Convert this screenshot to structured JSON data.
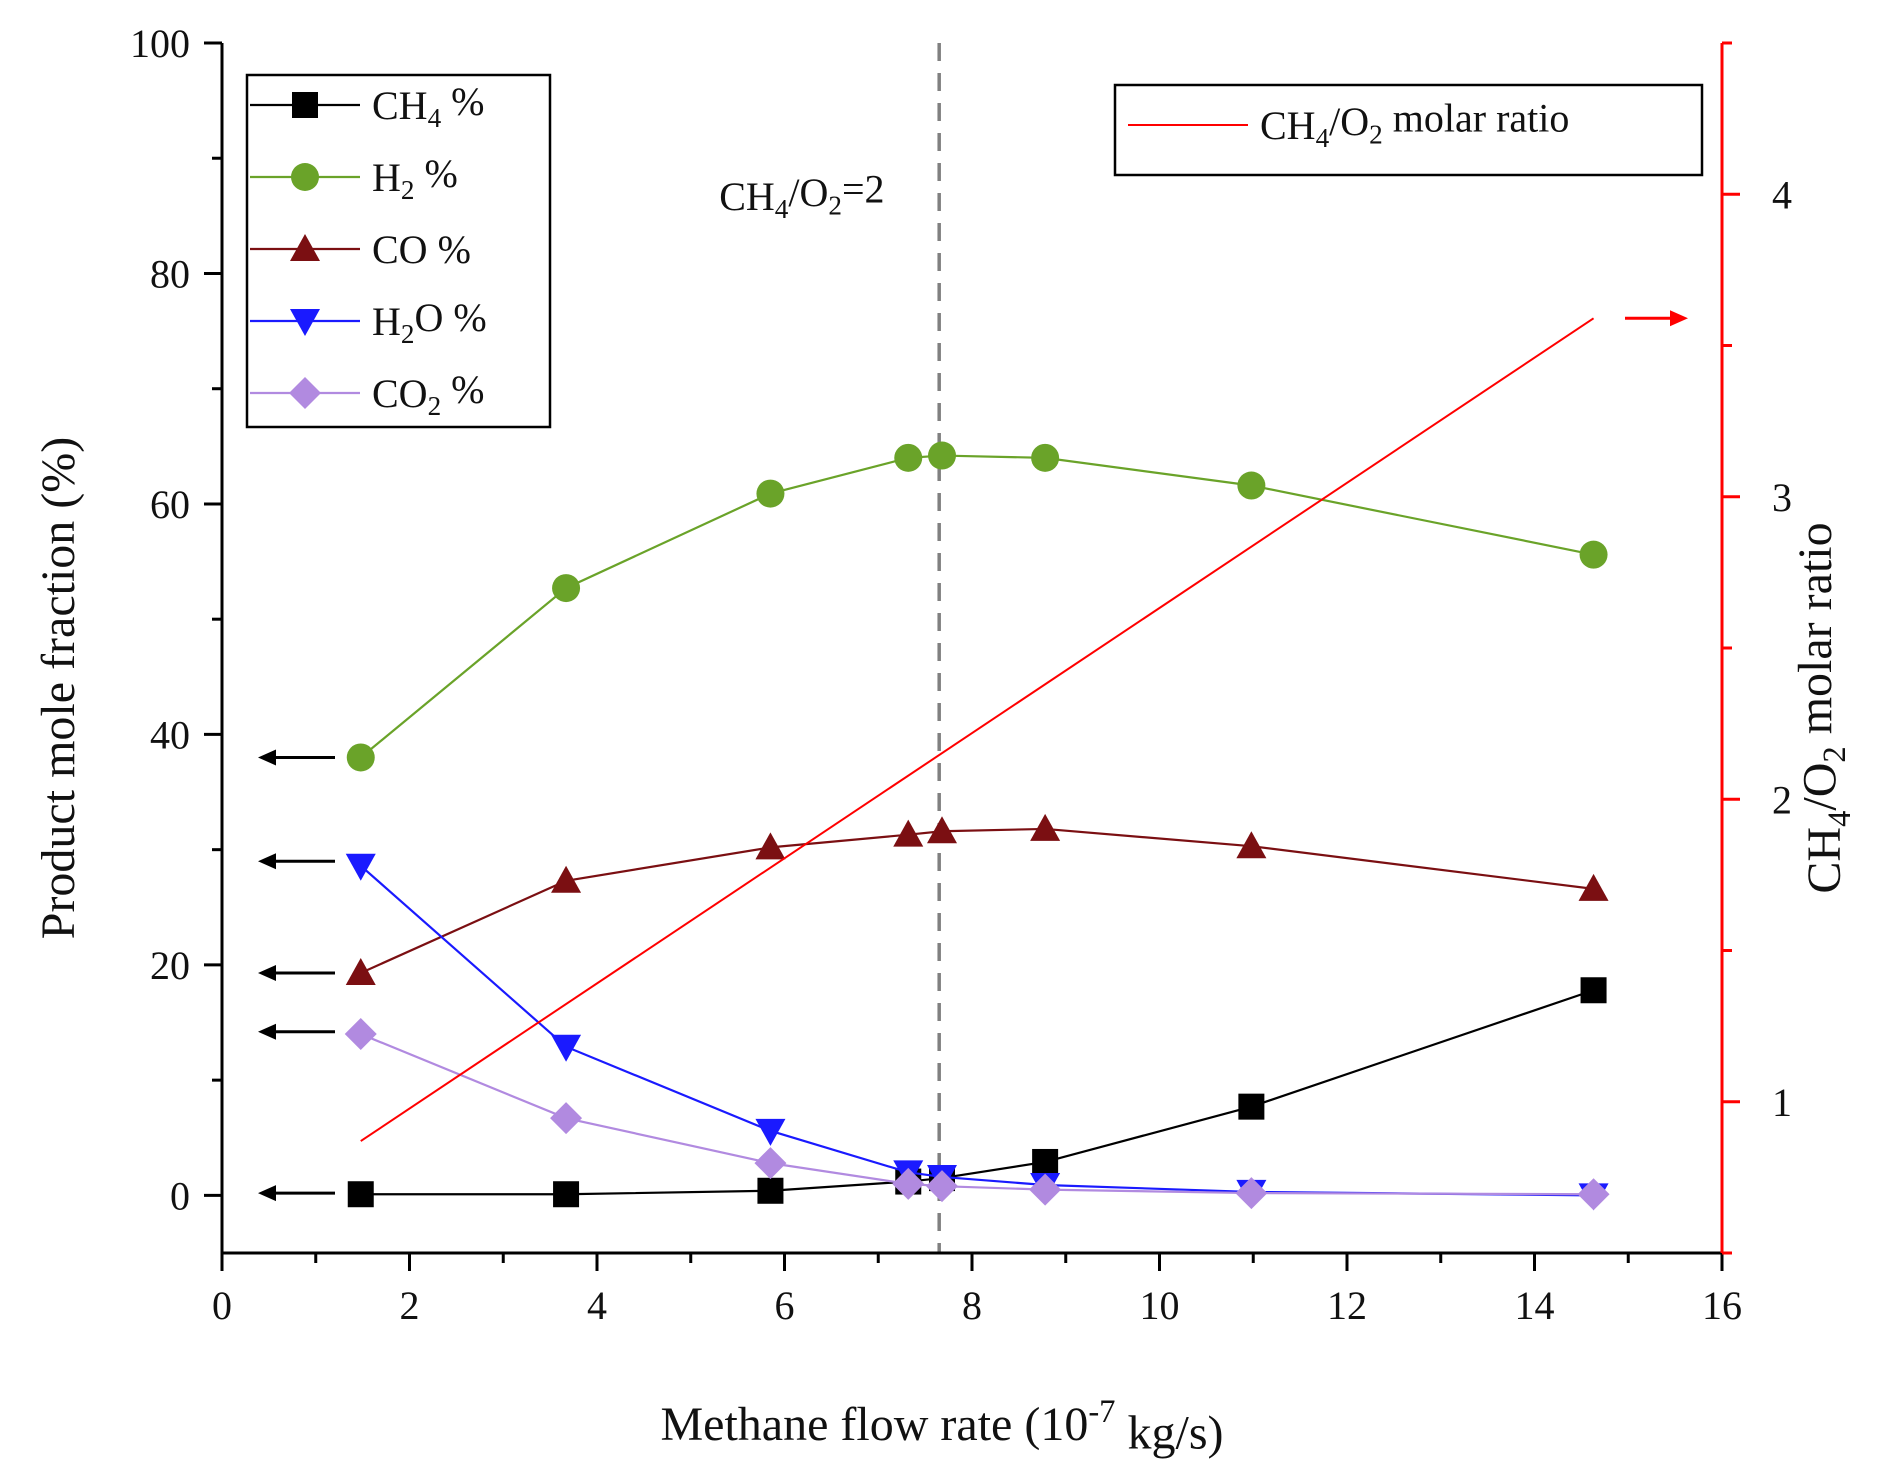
{
  "chart_data": {
    "type": "line",
    "title": "",
    "xlabel": "Methane flow rate (10^-7 kg/s)",
    "xlabel_parts": {
      "base": "Methane flow rate (10",
      "exp": "-7",
      "rest": " kg/s)"
    },
    "ylabel": "Product mole fraction (%)",
    "y2label": "CH4/O2 molar ratio",
    "y2label_parts": {
      "a": "CH",
      "a_sub": "4",
      "b": "/O",
      "b_sub": "2",
      "c": " molar ratio"
    },
    "xlim": [
      0,
      16
    ],
    "ylim": [
      -5,
      100
    ],
    "y2lim": [
      0.5,
      4.5
    ],
    "x_ticks": [
      "0",
      "2",
      "4",
      "6",
      "8",
      "10",
      "12",
      "14",
      "16"
    ],
    "y_ticks": [
      "0",
      "20",
      "40",
      "60",
      "80",
      "100"
    ],
    "y2_ticks": [
      "1",
      "2",
      "3",
      "4"
    ],
    "series": [
      {
        "name": "CH4 %",
        "label_base": "CH",
        "label_sub": "4",
        "label_rest": " %",
        "axis": "left",
        "color": "#000000",
        "marker": "square",
        "x": [
          1.48,
          3.67,
          5.85,
          7.32,
          7.68,
          8.78,
          10.98,
          14.63
        ],
        "values": [
          0.1,
          0.1,
          0.4,
          1.2,
          1.5,
          2.9,
          7.7,
          17.8
        ]
      },
      {
        "name": "H2 %",
        "label_base": "H",
        "label_sub": "2",
        "label_rest": " %",
        "axis": "left",
        "color": "#6aa329",
        "marker": "circle",
        "x": [
          1.48,
          3.67,
          5.85,
          7.32,
          7.68,
          8.78,
          10.98,
          14.63
        ],
        "values": [
          38.0,
          52.7,
          60.9,
          64.0,
          64.2,
          64.0,
          61.6,
          55.6
        ]
      },
      {
        "name": "CO %",
        "label_base": "CO",
        "label_sub": "",
        "label_rest": " %",
        "axis": "left",
        "color": "#7b0f12",
        "marker": "triangle-up",
        "x": [
          1.48,
          3.67,
          5.85,
          7.32,
          7.68,
          8.78,
          10.98,
          14.63
        ],
        "values": [
          19.3,
          27.3,
          30.2,
          31.3,
          31.6,
          31.8,
          30.3,
          26.6
        ]
      },
      {
        "name": "H2O %",
        "label_base": "H",
        "label_sub": "2",
        "label_rest": "O %",
        "axis": "left",
        "color": "#1a1aff",
        "marker": "triangle-down",
        "x": [
          1.48,
          3.67,
          5.85,
          7.32,
          7.68,
          8.78,
          10.98,
          14.63
        ],
        "values": [
          28.6,
          12.9,
          5.6,
          2.0,
          1.6,
          0.9,
          0.3,
          0.0
        ]
      },
      {
        "name": "CO2 %",
        "label_base": "CO",
        "label_sub": "2",
        "label_rest": " %",
        "axis": "left",
        "color": "#b18ae0",
        "marker": "diamond",
        "x": [
          1.48,
          3.67,
          5.85,
          7.32,
          7.68,
          8.78,
          10.98,
          14.63
        ],
        "values": [
          14.0,
          6.7,
          2.8,
          1.0,
          0.8,
          0.5,
          0.2,
          0.1
        ]
      },
      {
        "name": "CH4/O2 molar ratio",
        "label_base": "CH",
        "label_sub": "4",
        "label_rest": "/O",
        "label_sub2": "2",
        "label_rest2": " molar ratio",
        "axis": "right",
        "color": "#ff0000",
        "marker": "none",
        "x": [
          1.48,
          14.63
        ],
        "values": [
          0.87,
          3.59
        ]
      }
    ],
    "annotations": [
      {
        "text_base": "CH",
        "text_sub": "4",
        "text_mid": "/O",
        "text_sub2": "2",
        "text_rest": "=2",
        "type": "vertical-dashed-line",
        "x": 7.65
      }
    ],
    "axis_arrows": [
      {
        "series": "H2 %",
        "direction": "left",
        "y": 38.0
      },
      {
        "series": "H2O %",
        "direction": "left",
        "y": 29.0
      },
      {
        "series": "CO %",
        "direction": "left",
        "y": 19.3
      },
      {
        "series": "CO2 %",
        "direction": "left",
        "y": 14.2
      },
      {
        "series": "CH4 %",
        "direction": "left",
        "y": 0.2
      },
      {
        "series": "CH4/O2 molar ratio",
        "direction": "right",
        "y2": 3.59
      }
    ],
    "legend_placement": [
      "top-left",
      "top-right"
    ],
    "colors": {
      "axis": "#000000",
      "right_axis": "#ff0000",
      "guide": "#808080"
    }
  }
}
